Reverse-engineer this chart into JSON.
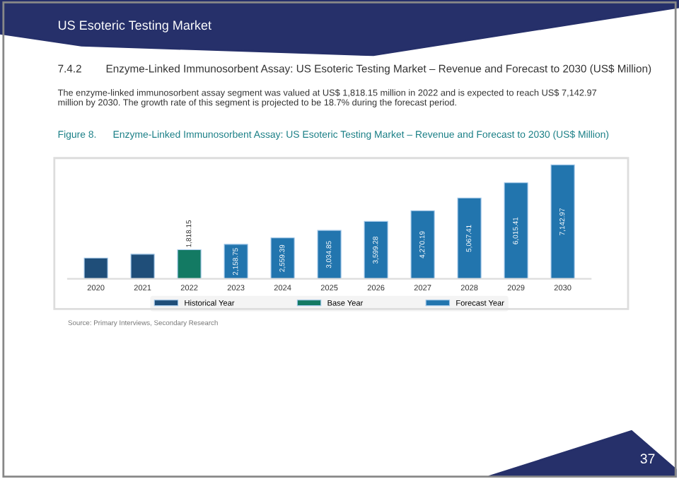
{
  "chart_data": {
    "type": "bar",
    "title": "Figure 8.      Enzyme-Linked Immunosorbent Assay: US Esoteric Testing Market – Revenue and Forecast to 2030 (US$ Million)",
    "annotations": [
      "US Esoteric Testing Market",
      "7.4.2        Enzyme-Linked Immunosorbent Assay: US Esoteric Testing Market – Revenue and Forecast to 2030 (US$ Million)",
      "The enzyme-linked immunosorbent assay segment was valued at US$ 1,818.15 million in 2022 and is expected to reach US$ 7,142.97 million by 2030. The growth rate of this segment is projected to be 18.7% during the forecast period.",
      "Source: Primary Interviews, Secondary Research",
      "37"
    ],
    "categories": [
      "2020",
      "2021",
      "2022",
      "2023",
      "2024",
      "2025",
      "2026",
      "2027",
      "2028",
      "2029",
      "2030"
    ],
    "series": [
      {
        "name": "Historical Year",
        "color": "#1f4e79",
        "values": [
          1300,
          1540,
          null,
          null,
          null,
          null,
          null,
          null,
          null,
          null,
          null
        ],
        "value_labels": [
          null,
          null,
          null,
          null,
          null,
          null,
          null,
          null,
          null,
          null,
          null
        ]
      },
      {
        "name": "Base Year",
        "color": "#137a63",
        "values": [
          null,
          null,
          1818.15,
          null,
          null,
          null,
          null,
          null,
          null,
          null,
          null
        ],
        "value_labels": [
          null,
          null,
          "1,818.15",
          null,
          null,
          null,
          null,
          null,
          null,
          null,
          null
        ]
      },
      {
        "name": "Forecast Year",
        "color": "#2275ae",
        "values": [
          null,
          null,
          null,
          2158.75,
          2559.39,
          3034.85,
          3599.28,
          4270.19,
          5067.41,
          6015.41,
          7142.97
        ],
        "value_labels": [
          null,
          null,
          null,
          "2,158.75",
          "2,559.39",
          "3,034.85",
          "3,599.28",
          "4,270.19",
          "5,067.41",
          "6,015.41",
          "7,142.97"
        ]
      }
    ],
    "legend": "bottom"
  }
}
